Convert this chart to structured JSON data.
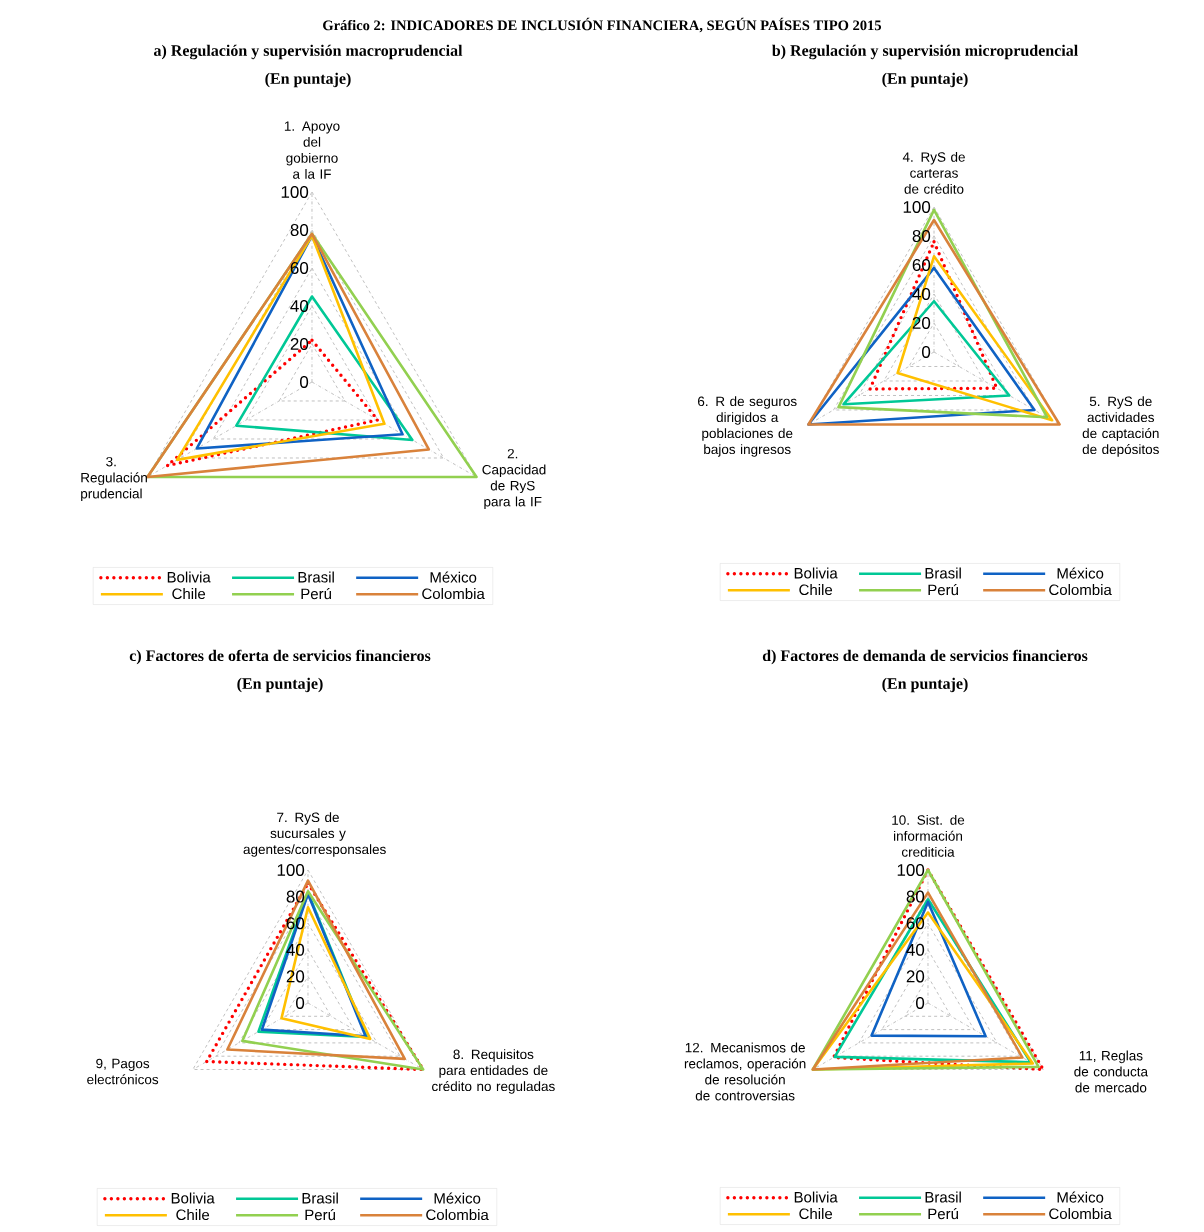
{
  "chart_data": [
    {
      "type": "radar",
      "title": "a) Regulación y supervisión macroprudencial",
      "subtitle": "(En puntaje)",
      "annotations": [
        "Gráfico 2: INDICADORES DE INCLUSIÓN FINANCIERA, SEGÚN PAÍSES TIPO 2015"
      ],
      "categories": [
        "1. Apoyo del gobierno a la IF",
        "2. Capacidad de RyS para la IF",
        "3. Regulación prudencial"
      ],
      "ylim": [
        0,
        100
      ],
      "yticks": [
        0,
        20,
        40,
        60,
        80,
        100
      ],
      "grid": true,
      "legend": "bottom",
      "series": [
        {
          "name": "Bolivia",
          "color": "#ff0000",
          "line_style": "dotted",
          "values": [
            22,
            40,
            88
          ]
        },
        {
          "name": "Brasil",
          "color": "#00c896",
          "line_style": "solid",
          "values": [
            45,
            61,
            46
          ]
        },
        {
          "name": "México",
          "color": "#0f62c4",
          "line_style": "solid",
          "values": [
            77,
            55,
            70
          ]
        },
        {
          "name": "Chile",
          "color": "#ffc000",
          "line_style": "solid",
          "values": [
            77,
            44,
            82
          ]
        },
        {
          "name": "Perú",
          "color": "#92d050",
          "line_style": "solid",
          "values": [
            78,
            100,
            100
          ]
        },
        {
          "name": "Colombia",
          "color": "#d9823b",
          "line_style": "solid",
          "values": [
            78,
            71,
            100
          ]
        }
      ]
    },
    {
      "type": "radar",
      "title": "b) Regulación y supervisión microprudencial",
      "subtitle": "(En puntaje)",
      "categories": [
        "4. RyS de carteras de crédito",
        "5. RyS de actividades de captación de depósitos",
        "6. R de seguros dirigidos a poblaciones de bajos ingresos"
      ],
      "ylim": [
        0,
        100
      ],
      "yticks": [
        0,
        20,
        40,
        60,
        80,
        100
      ],
      "grid": true,
      "legend": "bottom",
      "series": [
        {
          "name": "Bolivia",
          "color": "#ff0000",
          "line_style": "dotted",
          "values": [
            76,
            50,
            51
          ]
        },
        {
          "name": "Brasil",
          "color": "#00c896",
          "line_style": "solid",
          "values": [
            35,
            60,
            72
          ]
        },
        {
          "name": "México",
          "color": "#0f62c4",
          "line_style": "solid",
          "values": [
            58,
            80,
            100
          ]
        },
        {
          "name": "Chile",
          "color": "#ffc000",
          "line_style": "solid",
          "values": [
            66,
            94,
            29
          ]
        },
        {
          "name": "Perú",
          "color": "#92d050",
          "line_style": "solid",
          "values": [
            98,
            90,
            76
          ]
        },
        {
          "name": "Colombia",
          "color": "#d9823b",
          "line_style": "solid",
          "values": [
            91,
            100,
            100
          ]
        }
      ]
    },
    {
      "type": "radar",
      "title": "c) Factores de oferta de servicios financieros",
      "subtitle": "(En puntaje)",
      "categories": [
        "7. RyS de sucursales y agentes/corresponsales",
        "8. Requisitos para entidades de crédito no reguladas",
        "9, Pagos electrónicos"
      ],
      "ylim": [
        0,
        100
      ],
      "yticks": [
        0,
        20,
        40,
        60,
        80,
        100
      ],
      "grid": true,
      "legend": "bottom",
      "series": [
        {
          "name": "Bolivia",
          "color": "#ff0000",
          "line_style": "dotted",
          "values": [
            90,
            100,
            88
          ]
        },
        {
          "name": "Brasil",
          "color": "#00c896",
          "line_style": "solid",
          "values": [
            83,
            51,
            43
          ]
        },
        {
          "name": "México",
          "color": "#0f62c4",
          "line_style": "solid",
          "values": [
            82,
            50,
            40
          ]
        },
        {
          "name": "Chile",
          "color": "#ffc000",
          "line_style": "solid",
          "values": [
            72,
            54,
            23
          ]
        },
        {
          "name": "Perú",
          "color": "#92d050",
          "line_style": "solid",
          "values": [
            84,
            100,
            57
          ]
        },
        {
          "name": "Colombia",
          "color": "#d9823b",
          "line_style": "solid",
          "values": [
            92,
            84,
            70
          ]
        }
      ]
    },
    {
      "type": "radar",
      "title": "d) Factores de demanda de servicios financieros",
      "subtitle": "(En puntaje)",
      "categories": [
        "10. Sist. de información crediticia",
        "11, Reglas de conducta de mercado",
        "12. Mecanismos de reclamos, operación de resolución de controversias"
      ],
      "ylim": [
        0,
        100
      ],
      "yticks": [
        0,
        20,
        40,
        60,
        80,
        100
      ],
      "grid": true,
      "legend": "bottom",
      "series": [
        {
          "name": "Bolivia",
          "color": "#ff0000",
          "line_style": "dotted",
          "values": [
            100,
            100,
            82
          ]
        },
        {
          "name": "Brasil",
          "color": "#00c896",
          "line_style": "solid",
          "values": [
            78,
            89,
            81
          ]
        },
        {
          "name": "México",
          "color": "#0f62c4",
          "line_style": "solid",
          "values": [
            76,
            50,
            49
          ]
        },
        {
          "name": "Chile",
          "color": "#ffc000",
          "line_style": "solid",
          "values": [
            68,
            91,
            100
          ]
        },
        {
          "name": "Perú",
          "color": "#92d050",
          "line_style": "solid",
          "values": [
            100,
            96,
            100
          ]
        },
        {
          "name": "Colombia",
          "color": "#d9823b",
          "line_style": "solid",
          "values": [
            83,
            82,
            100
          ]
        }
      ]
    }
  ]
}
